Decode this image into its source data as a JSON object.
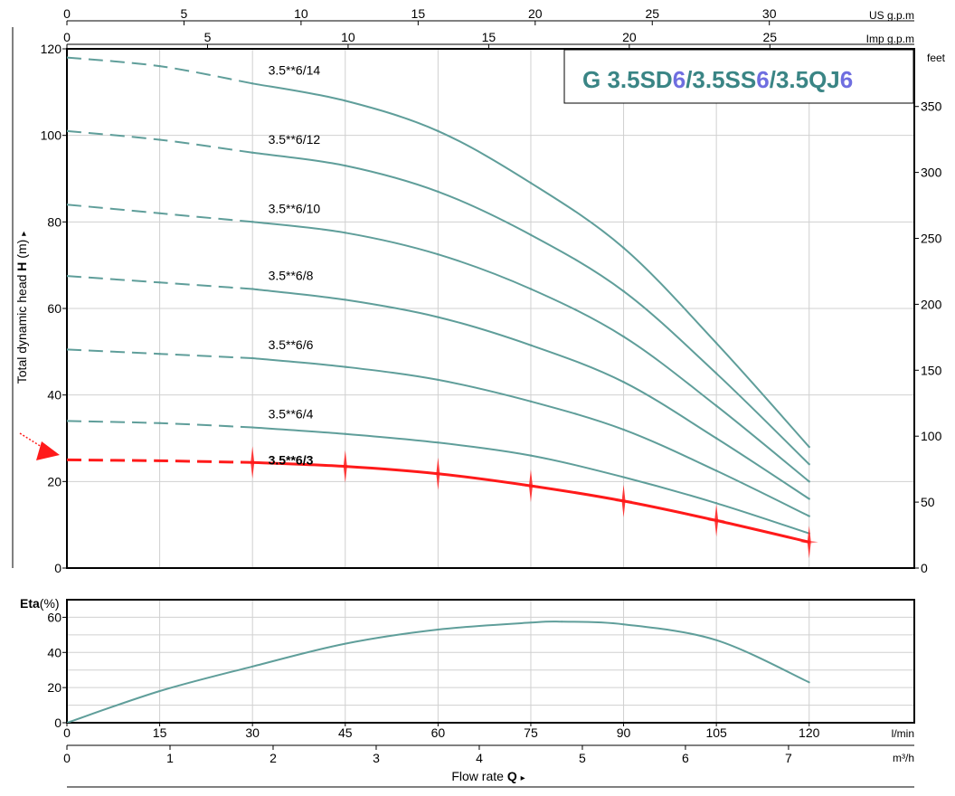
{
  "title": {
    "parts": [
      {
        "text": "G 3.5SD",
        "color": "#3a8585"
      },
      {
        "text": "6",
        "color": "#6f6ee0"
      },
      {
        "text": "/3.5SS",
        "color": "#3a8585"
      },
      {
        "text": "6",
        "color": "#6f6ee0"
      },
      {
        "text": "/3.5QJ",
        "color": "#3a8585"
      },
      {
        "text": "6",
        "color": "#6f6ee0"
      }
    ]
  },
  "colors": {
    "curve": "#5f9e9a",
    "highlight": "#ff1a1a",
    "grid": "#d0d0d0",
    "axis": "#000000",
    "title_teal": "#3a8585",
    "title_blue": "#6f6ee0"
  },
  "top_axes": {
    "us_gpm": {
      "unit": "US g.p.m",
      "ticks": [
        "0",
        "5",
        "10",
        "15",
        "20",
        "25",
        "30"
      ],
      "values": [
        0,
        5,
        10,
        15,
        20,
        25,
        30
      ]
    },
    "imp_gpm": {
      "unit": "Imp g.p.m",
      "ticks": [
        "0",
        "5",
        "10",
        "15",
        "20",
        "25"
      ],
      "values": [
        0,
        5,
        10,
        15,
        20,
        25
      ]
    }
  },
  "bottom_axes": {
    "lmin": {
      "unit": "l/min",
      "ticks": [
        "0",
        "15",
        "30",
        "45",
        "60",
        "75",
        "90",
        "105",
        "120"
      ]
    },
    "m3h": {
      "unit": "m³/h",
      "ticks": [
        "0",
        "1",
        "2",
        "3",
        "4",
        "5",
        "6",
        "7"
      ],
      "values": [
        0,
        1,
        2,
        3,
        4,
        5,
        6,
        7
      ]
    },
    "xlabel": {
      "prefix": "Flow rate",
      "symbol": "Q",
      "arrow": "▸"
    }
  },
  "head_axis": {
    "ylabel": {
      "prefix": "Total dynamic head",
      "symbol": "H",
      "suffix": "(m)",
      "arrow": "▸"
    },
    "ticks": [
      "0",
      "20",
      "40",
      "60",
      "80",
      "100",
      "120"
    ]
  },
  "feet_axis": {
    "unit": "feet",
    "ticks": [
      "0",
      "50",
      "100",
      "150",
      "200",
      "250",
      "300",
      "350"
    ],
    "values": [
      0,
      50,
      100,
      150,
      200,
      250,
      300,
      350
    ]
  },
  "eta_axis": {
    "label_bold": "Eta",
    "label_rest": "(%)",
    "ticks": [
      "0",
      "20",
      "40",
      "60"
    ]
  },
  "chart_data": [
    {
      "type": "line",
      "title": "G 3.5SD6/3.5SS6/3.5QJ6",
      "xlabel": "Flow rate Q",
      "ylabel": "Total dynamic head H (m)",
      "x_unit": "l/min",
      "xlim": [
        0,
        137
      ],
      "ylim": [
        0,
        120
      ],
      "y2_unit": "feet",
      "grid": true,
      "dashed_segment_until_x": 30,
      "highlighted_series": "3.5**6/3",
      "x": [
        0,
        15,
        30,
        45,
        60,
        75,
        90,
        105,
        120
      ],
      "series": [
        {
          "name": "3.5**6/14",
          "values": [
            118,
            116,
            112,
            108,
            101,
            89,
            74,
            52,
            28
          ]
        },
        {
          "name": "3.5**6/12",
          "values": [
            101,
            99,
            96,
            93,
            87,
            77,
            64,
            45,
            24
          ]
        },
        {
          "name": "3.5**6/10",
          "values": [
            84,
            82,
            80,
            77.5,
            72.5,
            64.5,
            53.5,
            37.5,
            20
          ]
        },
        {
          "name": "3.5**6/8",
          "values": [
            67.5,
            66,
            64.5,
            62,
            58,
            51.5,
            43,
            30,
            16
          ]
        },
        {
          "name": "3.5**6/6",
          "values": [
            50.5,
            49.5,
            48.5,
            46.5,
            43.5,
            38.5,
            32,
            22.5,
            12
          ]
        },
        {
          "name": "3.5**6/4",
          "values": [
            34,
            33.5,
            32.5,
            31,
            29,
            26,
            21,
            15,
            8
          ]
        },
        {
          "name": "3.5**6/3",
          "values": [
            25,
            24.8,
            24.4,
            23.5,
            21.8,
            19,
            15.5,
            11,
            6
          ]
        }
      ]
    },
    {
      "type": "line",
      "title": "",
      "xlabel": "Flow rate Q",
      "ylabel": "Eta(%)",
      "x_unit": "l/min",
      "xlim": [
        0,
        137
      ],
      "ylim": [
        0,
        70
      ],
      "grid": true,
      "x": [
        0,
        15,
        30,
        45,
        60,
        75,
        80,
        90,
        105,
        120
      ],
      "series": [
        {
          "name": "",
          "values": [
            0,
            18,
            32,
            45,
            53,
            57,
            57.5,
            56,
            47,
            23
          ]
        }
      ]
    }
  ]
}
